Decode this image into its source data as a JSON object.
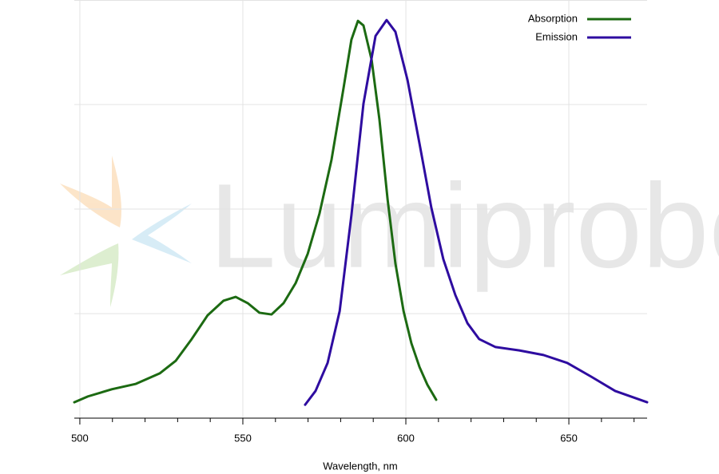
{
  "chart_data": {
    "type": "line",
    "watermark": "Lumiprobe",
    "x_label": "Wavelength, nm",
    "xlim": [
      498.3,
      674
    ],
    "xticks": [
      500,
      550,
      600,
      650
    ],
    "xminorticks": [
      510,
      520,
      530,
      540,
      560,
      570,
      580,
      590,
      610,
      620,
      630,
      640,
      660,
      670
    ],
    "ylim": [
      0,
      1
    ],
    "yticks": [
      0.25,
      0.5,
      0.75,
      1
    ],
    "grid": true,
    "legend": "top-right",
    "series": [
      {
        "name": "Absorption",
        "color": "#1c6a12",
        "x": [
          498.3,
          502.5,
          509.8,
          517.2,
          524.5,
          529.4,
          534.3,
          539.2,
          544.1,
          547.8,
          551.5,
          555.1,
          558.8,
          562.5,
          566.2,
          569.9,
          573.5,
          577.2,
          580.9,
          583.3,
          585.3,
          587.0,
          589.5,
          591.9,
          594.4,
          596.8,
          599.3,
          601.7,
          604.2,
          606.6,
          609.3
        ],
        "values": [
          0.038,
          0.052,
          0.069,
          0.082,
          0.107,
          0.137,
          0.189,
          0.246,
          0.281,
          0.29,
          0.275,
          0.252,
          0.248,
          0.275,
          0.323,
          0.393,
          0.489,
          0.618,
          0.79,
          0.905,
          0.95,
          0.939,
          0.857,
          0.714,
          0.523,
          0.37,
          0.256,
          0.179,
          0.122,
          0.08,
          0.044
        ]
      },
      {
        "name": "Emission",
        "color": "#2e0ca0",
        "x": [
          569.1,
          572.3,
          576.0,
          579.7,
          583.3,
          587.0,
          590.7,
          594.1,
          596.8,
          600.5,
          604.2,
          607.8,
          611.5,
          615.2,
          618.9,
          622.5,
          627.5,
          634.8,
          642.2,
          649.5,
          656.9,
          664.2,
          674.0
        ],
        "values": [
          0.032,
          0.065,
          0.132,
          0.256,
          0.485,
          0.752,
          0.914,
          0.952,
          0.924,
          0.809,
          0.656,
          0.504,
          0.38,
          0.294,
          0.227,
          0.189,
          0.17,
          0.162,
          0.151,
          0.132,
          0.099,
          0.065,
          0.038
        ]
      }
    ]
  }
}
